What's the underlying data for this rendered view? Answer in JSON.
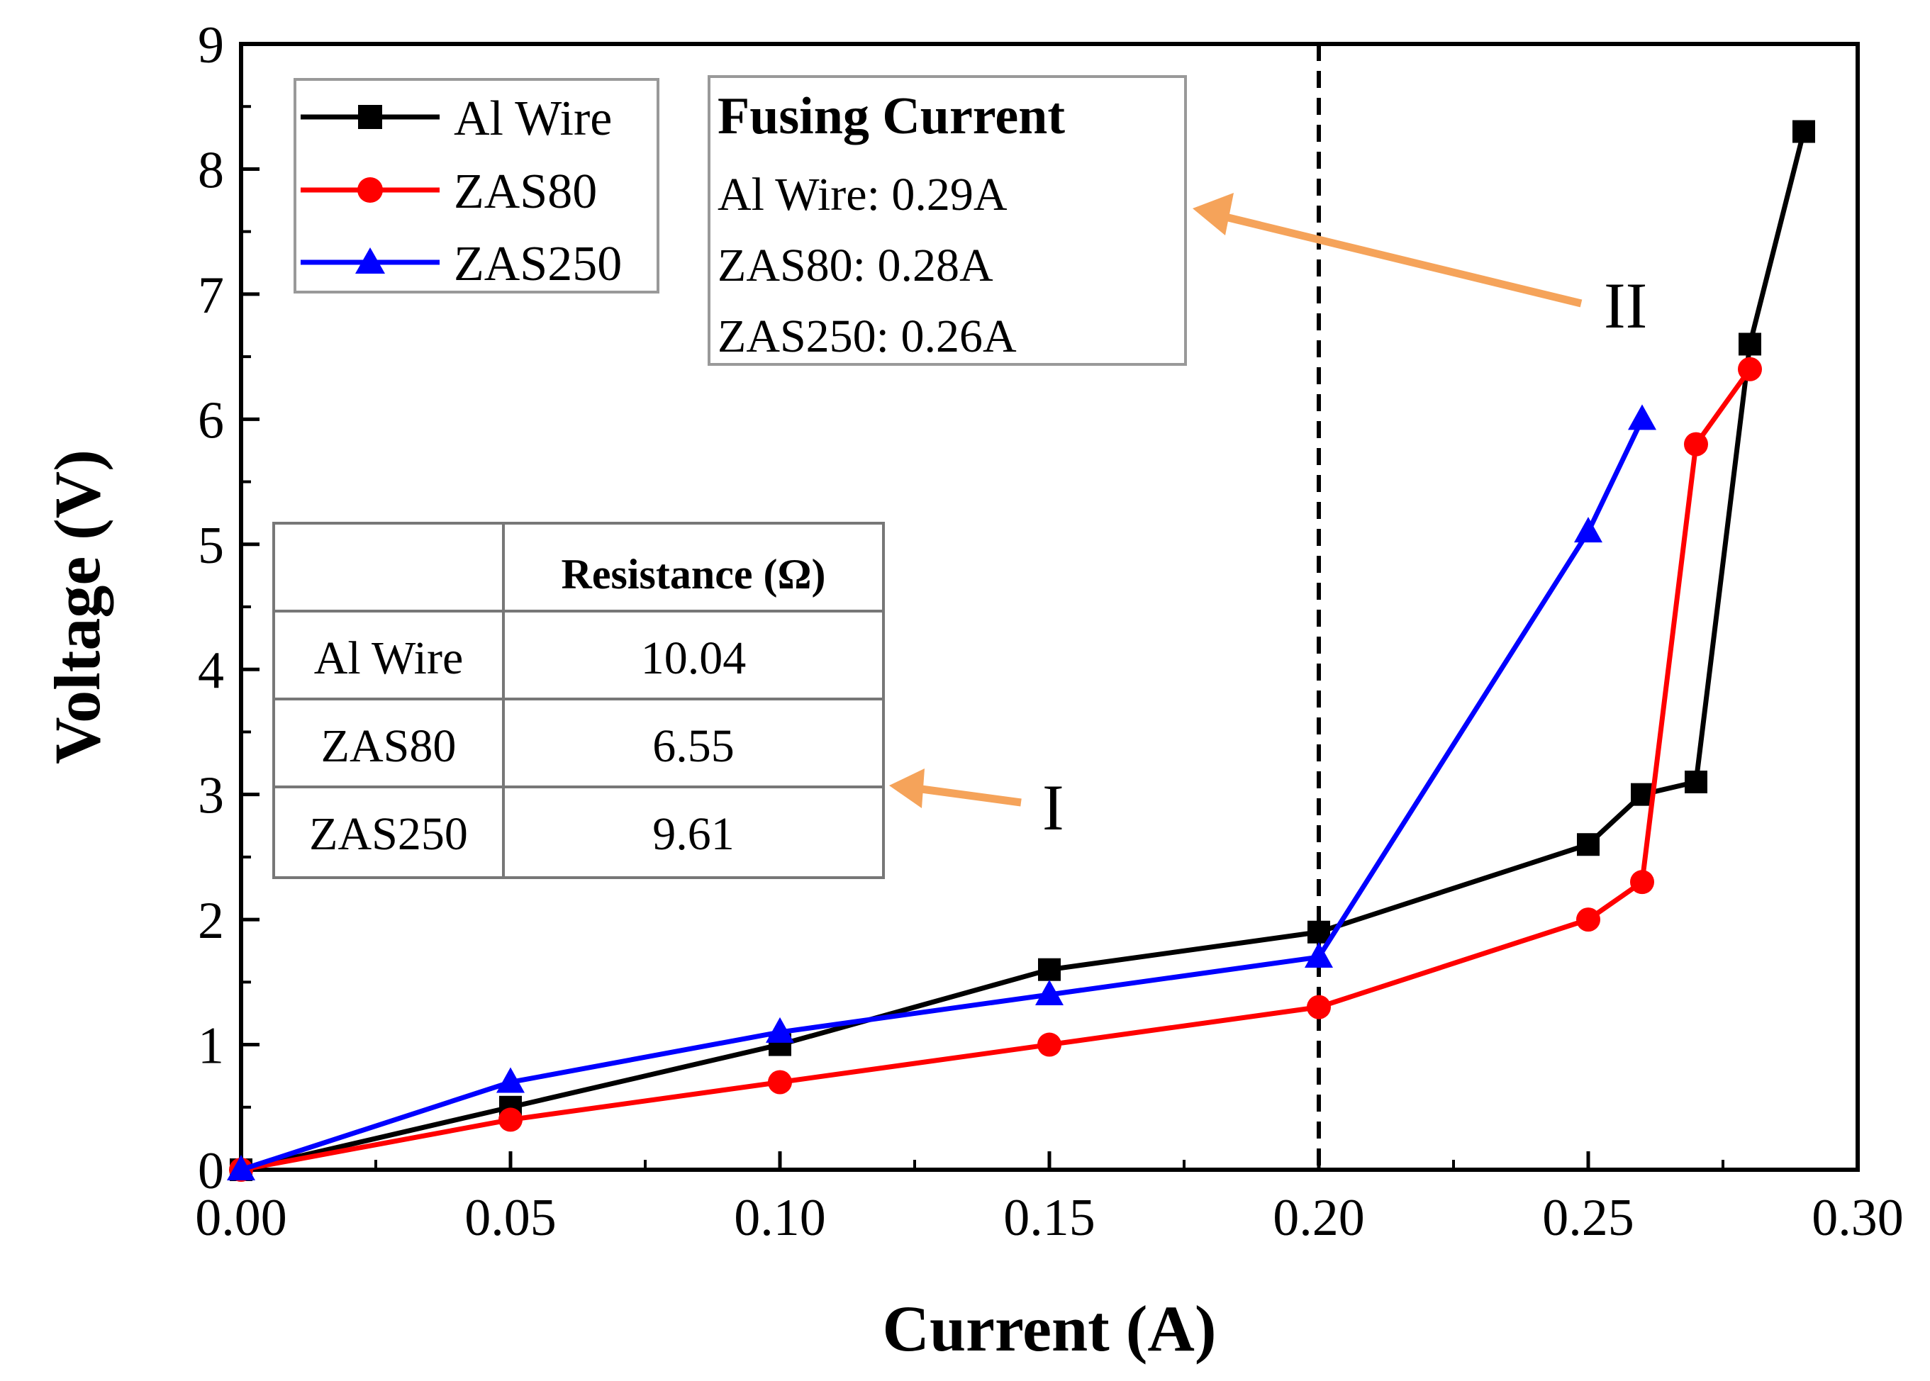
{
  "chart_data": {
    "type": "line",
    "xlabel": "Current (A)",
    "ylabel": "Voltage (V)",
    "xlim": [
      0,
      0.3
    ],
    "ylim": [
      0,
      9
    ],
    "x_ticks": [
      "0.00",
      "0.05",
      "0.10",
      "0.15",
      "0.20",
      "0.25",
      "0.30"
    ],
    "y_ticks": [
      "0",
      "1",
      "2",
      "3",
      "4",
      "5",
      "6",
      "7",
      "8",
      "9"
    ],
    "grid": false,
    "legend_position": "top-left",
    "vertical_reference_line": {
      "x": 0.2,
      "style": "dashed"
    },
    "series": [
      {
        "name": "Al Wire",
        "color": "#000000",
        "marker": "square",
        "x": [
          0,
          0.05,
          0.1,
          0.15,
          0.2,
          0.25,
          0.26,
          0.27,
          0.28,
          0.29
        ],
        "values": [
          0,
          0.5,
          1.0,
          1.6,
          1.9,
          2.6,
          3.0,
          3.1,
          6.6,
          8.3
        ]
      },
      {
        "name": "ZAS80",
        "color": "#ff0000",
        "marker": "circle",
        "x": [
          0,
          0.05,
          0.1,
          0.15,
          0.2,
          0.25,
          0.26,
          0.27,
          0.28
        ],
        "values": [
          0,
          0.4,
          0.7,
          1.0,
          1.3,
          2.0,
          2.3,
          5.8,
          6.4
        ]
      },
      {
        "name": "ZAS250",
        "color": "#0000ff",
        "marker": "triangle",
        "x": [
          0,
          0.05,
          0.1,
          0.15,
          0.2,
          0.25,
          0.26
        ],
        "values": [
          0,
          0.7,
          1.1,
          1.4,
          1.7,
          5.1,
          6.0
        ]
      }
    ],
    "annotations": {
      "fusing_box": {
        "title": "Fusing Current",
        "lines": [
          "Al Wire: 0.29A",
          "ZAS80: 0.28A",
          "ZAS250: 0.26A"
        ],
        "pointer_label": "II"
      },
      "resistance_table": {
        "header": "Resistance (Ω)",
        "rows": [
          {
            "name": "Al Wire",
            "value": "10.04"
          },
          {
            "name": "ZAS80",
            "value": "6.55"
          },
          {
            "name": "ZAS250",
            "value": "9.61"
          }
        ],
        "pointer_label": "I"
      },
      "arrow_color": "#f5a35a"
    }
  }
}
